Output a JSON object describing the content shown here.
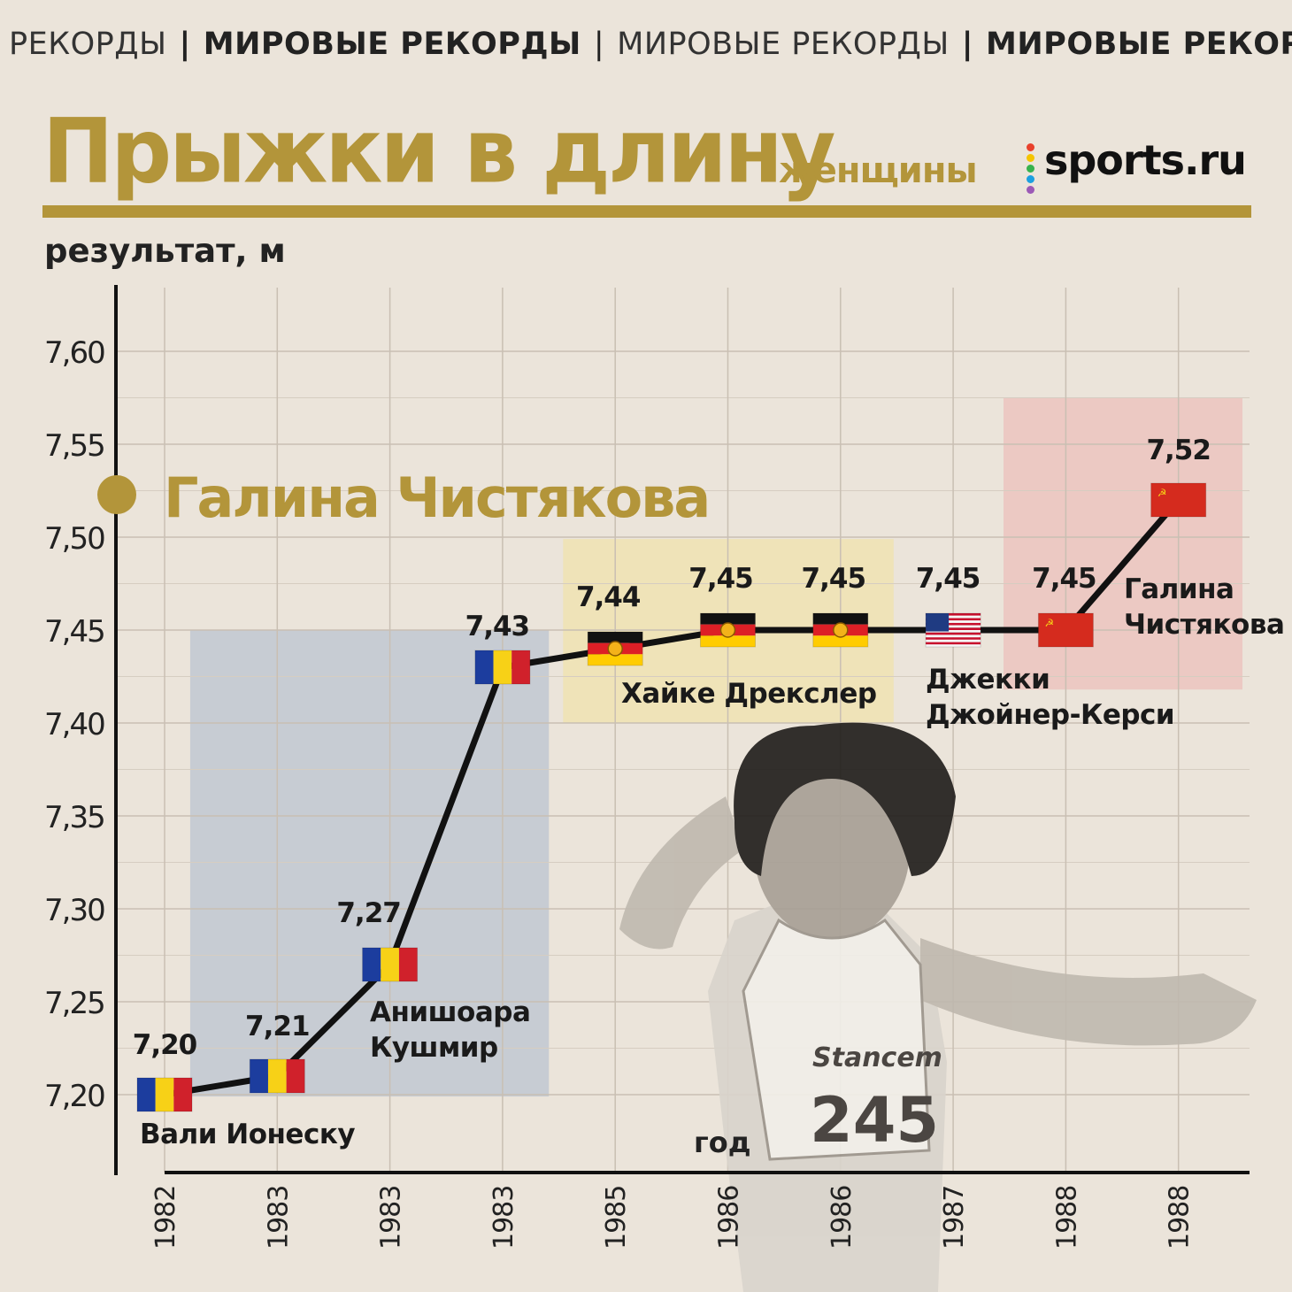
{
  "header": {
    "ticker": [
      {
        "text": "РЕКОРДЫ",
        "bold": false
      },
      {
        "text": "МИРОВЫЕ РЕКОРДЫ",
        "bold": true
      },
      {
        "text": "МИРОВЫЕ РЕКОРДЫ",
        "bold": false
      },
      {
        "text": "МИРОВЫЕ РЕКОРДЫ",
        "bold": true
      }
    ],
    "title": "Прыжки в длину",
    "subtitle": "женщины",
    "logo_text": "sports.ru",
    "logo_dot_colors": [
      "#e8412c",
      "#f5c400",
      "#37b24d",
      "#1c9fe0",
      "#9b59b6"
    ]
  },
  "highlight_name": "Галина Чистякова",
  "colors": {
    "gold": "#b3953a",
    "romania_box": "#c7ccd3",
    "gdr_box": "#efe3b8",
    "ussr_box": "#ecc9c3",
    "line": "#111111"
  },
  "chart_data": {
    "type": "line",
    "ylabel": "результат, м",
    "xlabel": "год",
    "ylim": [
      7.175,
      7.62
    ],
    "yticks": [
      "7,20",
      "7,25",
      "7,30",
      "7,35",
      "7,40",
      "7,45",
      "7,50",
      "7,55",
      "7,60"
    ],
    "ytick_values": [
      7.2,
      7.25,
      7.3,
      7.35,
      7.4,
      7.45,
      7.5,
      7.55,
      7.6
    ],
    "categories": [
      "1982",
      "1983",
      "1983",
      "1983",
      "1985",
      "1986",
      "1986",
      "1987",
      "1988",
      "1988"
    ],
    "values": [
      7.2,
      7.21,
      7.27,
      7.43,
      7.44,
      7.45,
      7.45,
      7.45,
      7.45,
      7.52
    ],
    "value_labels": [
      "7,20",
      "7,21",
      "7,27",
      "7,43",
      "7,44",
      "7,45",
      "7,45",
      "7,45",
      "7,45",
      "7,52"
    ],
    "flags": [
      "romania",
      "romania",
      "romania",
      "romania",
      "gdr",
      "gdr",
      "gdr",
      "usa",
      "ussr",
      "ussr"
    ],
    "grid": true,
    "athletes": [
      {
        "name_lines": [
          "Вали Ионеску"
        ],
        "country": "romania"
      },
      {
        "name_lines": [
          "Анишоара",
          "Кушмир"
        ],
        "country": "romania"
      },
      {
        "name_lines": [
          "Хайке Дрекслер"
        ],
        "country": "gdr"
      },
      {
        "name_lines": [
          "Джекки",
          "Джойнер-Керси"
        ],
        "country": "usa"
      },
      {
        "name_lines": [
          "Галина",
          "Чистякова"
        ],
        "country": "ussr"
      }
    ]
  }
}
